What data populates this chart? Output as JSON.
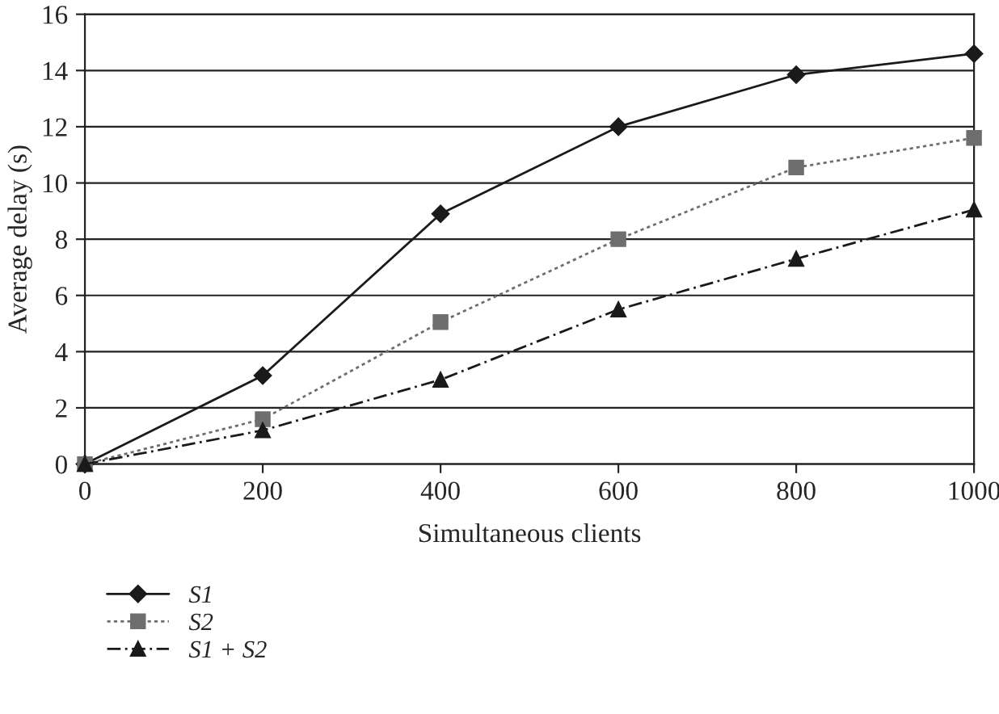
{
  "chart_data": {
    "type": "line",
    "xlabel": "Simultaneous clients",
    "ylabel": "Average delay (s)",
    "x": [
      0,
      200,
      400,
      600,
      800,
      1000
    ],
    "series": [
      {
        "name": "S1",
        "color": "#1a1a1a",
        "values": [
          0,
          3.15,
          8.9,
          12.0,
          13.85,
          14.6
        ],
        "marker": "diamond",
        "line_style": "solid"
      },
      {
        "name": "S2",
        "color": "#6e6e6e",
        "values": [
          0,
          1.6,
          5.05,
          8.0,
          10.55,
          11.6
        ],
        "marker": "square",
        "line_style": "dotted"
      },
      {
        "name": "S1 + S2",
        "color": "#1a1a1a",
        "values": [
          0,
          1.2,
          3.0,
          5.5,
          7.3,
          9.05
        ],
        "marker": "triangle",
        "line_style": "dashed"
      }
    ],
    "xlim": [
      0,
      1000
    ],
    "xticks": [
      0,
      200,
      400,
      600,
      800,
      1000
    ],
    "ylim": [
      0,
      16
    ],
    "yticks": [
      0,
      2,
      4,
      6,
      8,
      10,
      12,
      14,
      16
    ],
    "grid": "y",
    "legend": "bottom left"
  }
}
